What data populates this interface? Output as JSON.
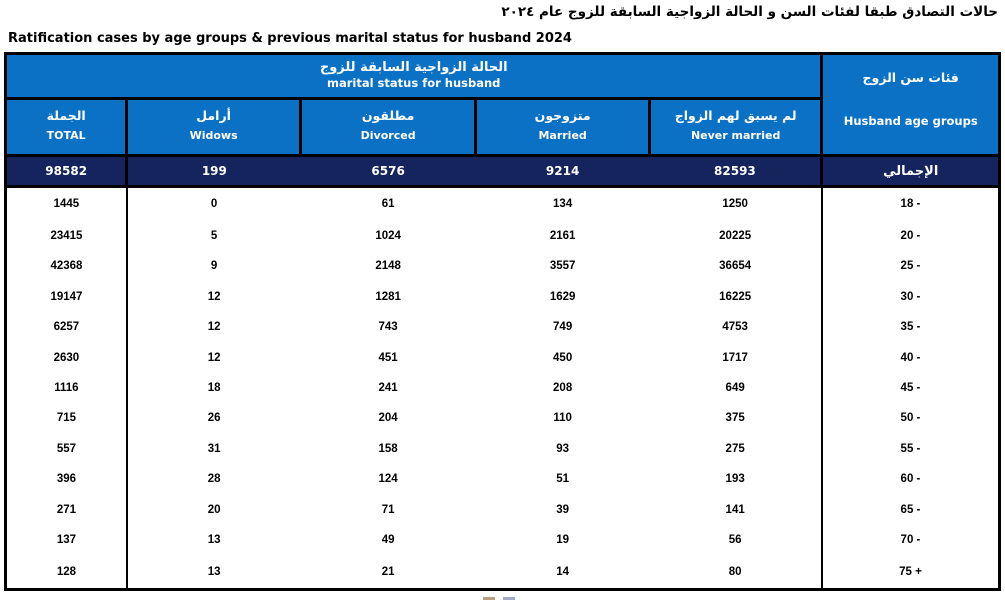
{
  "title_ar": "حالات التصادق طبقا لفئات السن و الحالة الزواجية السابقة للزوج  عام ٢٠٢٤",
  "title_en": "Ratification cases by age groups & previous marital status for husband 2024",
  "colors": {
    "header_blue": "#0b71c5",
    "total_navy": "#16245e",
    "border": "#000000",
    "footer_mark_1": "#a8895f",
    "footer_mark_2": "#8d97bb"
  },
  "table": {
    "header": {
      "marital_group_ar": "الحالة الزواجية السابقة للزوج",
      "marital_group_en": "marital status for husband",
      "age_col_ar": "فئات سن الزوج",
      "age_col_en": "Husband age groups",
      "columns": [
        {
          "ar": "الجملة",
          "en": "TOTAL"
        },
        {
          "ar": "أرامل",
          "en": "Widows"
        },
        {
          "ar": "مطلقون",
          "en": "Divorced"
        },
        {
          "ar": "متزوجون",
          "en": "Married"
        },
        {
          "ar": "لم يسبق لهم الزواج",
          "en": "Never married"
        }
      ]
    },
    "total_row": {
      "total": "98582",
      "widows": "199",
      "divorced": "6576",
      "married": "9214",
      "never_married": "82593",
      "label_ar": "الإجمالي"
    },
    "rows": [
      {
        "total": "1445",
        "widows": "0",
        "divorced": "61",
        "married": "134",
        "never_married": "1250",
        "age": "18 -"
      },
      {
        "total": "23415",
        "widows": "5",
        "divorced": "1024",
        "married": "2161",
        "never_married": "20225",
        "age": "20 -"
      },
      {
        "total": "42368",
        "widows": "9",
        "divorced": "2148",
        "married": "3557",
        "never_married": "36654",
        "age": "25 -"
      },
      {
        "total": "19147",
        "widows": "12",
        "divorced": "1281",
        "married": "1629",
        "never_married": "16225",
        "age": "30 -"
      },
      {
        "total": "6257",
        "widows": "12",
        "divorced": "743",
        "married": "749",
        "never_married": "4753",
        "age": "35 -"
      },
      {
        "total": "2630",
        "widows": "12",
        "divorced": "451",
        "married": "450",
        "never_married": "1717",
        "age": "40 -"
      },
      {
        "total": "1116",
        "widows": "18",
        "divorced": "241",
        "married": "208",
        "never_married": "649",
        "age": "45 -"
      },
      {
        "total": "715",
        "widows": "26",
        "divorced": "204",
        "married": "110",
        "never_married": "375",
        "age": "50 -"
      },
      {
        "total": "557",
        "widows": "31",
        "divorced": "158",
        "married": "93",
        "never_married": "275",
        "age": "55 -"
      },
      {
        "total": "396",
        "widows": "28",
        "divorced": "124",
        "married": "51",
        "never_married": "193",
        "age": "60 -"
      },
      {
        "total": "271",
        "widows": "20",
        "divorced": "71",
        "married": "39",
        "never_married": "141",
        "age": "65 -"
      },
      {
        "total": "137",
        "widows": "13",
        "divorced": "49",
        "married": "19",
        "never_married": "56",
        "age": "70 -"
      },
      {
        "total": "128",
        "widows": "13",
        "divorced": "21",
        "married": "14",
        "never_married": "80",
        "age": "75 +"
      }
    ]
  }
}
